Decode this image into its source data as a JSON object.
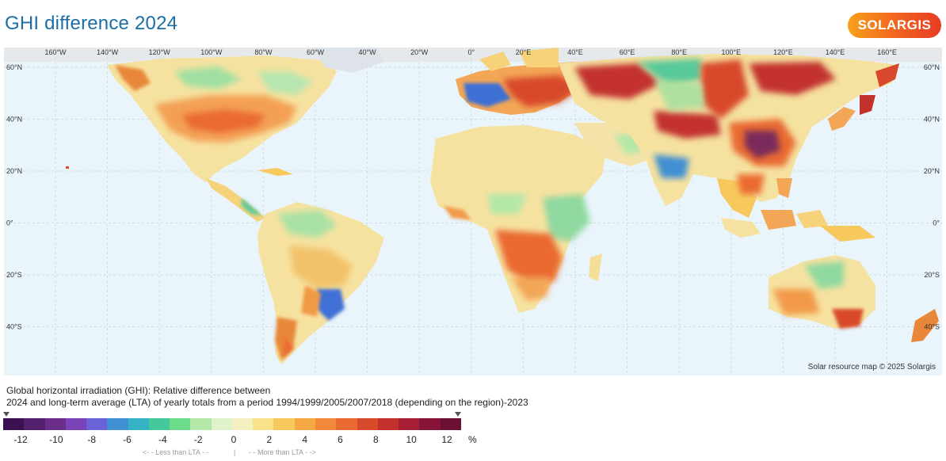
{
  "title": "GHI difference 2024",
  "logo": "SOLARGIS",
  "credit": "Solar resource map © 2025 Solargis",
  "description": {
    "line1": "Global horizontal irradiation (GHI): Relative difference between",
    "line2": "2024 and long-term average (LTA) of yearly totals from a period 1994/1999/2005/2007/2018 (depending on the region)-2023"
  },
  "map": {
    "top_lon_labels": [
      "160°W",
      "140°W",
      "120°W",
      "100°W",
      "80°W",
      "60°W",
      "40°W",
      "20°W",
      "0°",
      "20°E",
      "40°E",
      "60°E",
      "80°E",
      "100°E",
      "120°E",
      "140°E",
      "160°E"
    ],
    "lat_labels": [
      "60°N",
      "40°N",
      "20°N",
      "0°",
      "20°S",
      "40°S"
    ]
  },
  "legend": {
    "colors": [
      "#3c1152",
      "#54206e",
      "#6b2e8a",
      "#7a44b8",
      "#6a63d8",
      "#3f8fd2",
      "#33b3c4",
      "#45c89a",
      "#6cdb8a",
      "#b3e8a8",
      "#dff2c9",
      "#f5f0c0",
      "#f8e28a",
      "#f7c85c",
      "#f6a842",
      "#f2893a",
      "#ea6a33",
      "#d84a2c",
      "#c3312d",
      "#a51e33",
      "#861438",
      "#6a1035"
    ],
    "ticks": [
      "-12",
      "-10",
      "-8",
      "-6",
      "-4",
      "-2",
      "0",
      "2",
      "4",
      "6",
      "8",
      "10",
      "12"
    ],
    "unit": "%",
    "less_label": "<- - Less than LTA - -",
    "separator": "|",
    "more_label": "- - More than LTA - ->"
  },
  "colors": {
    "title": "#1a6fa8",
    "ocean": "#e9f4fb",
    "accent_orange": "#f26b1d"
  }
}
